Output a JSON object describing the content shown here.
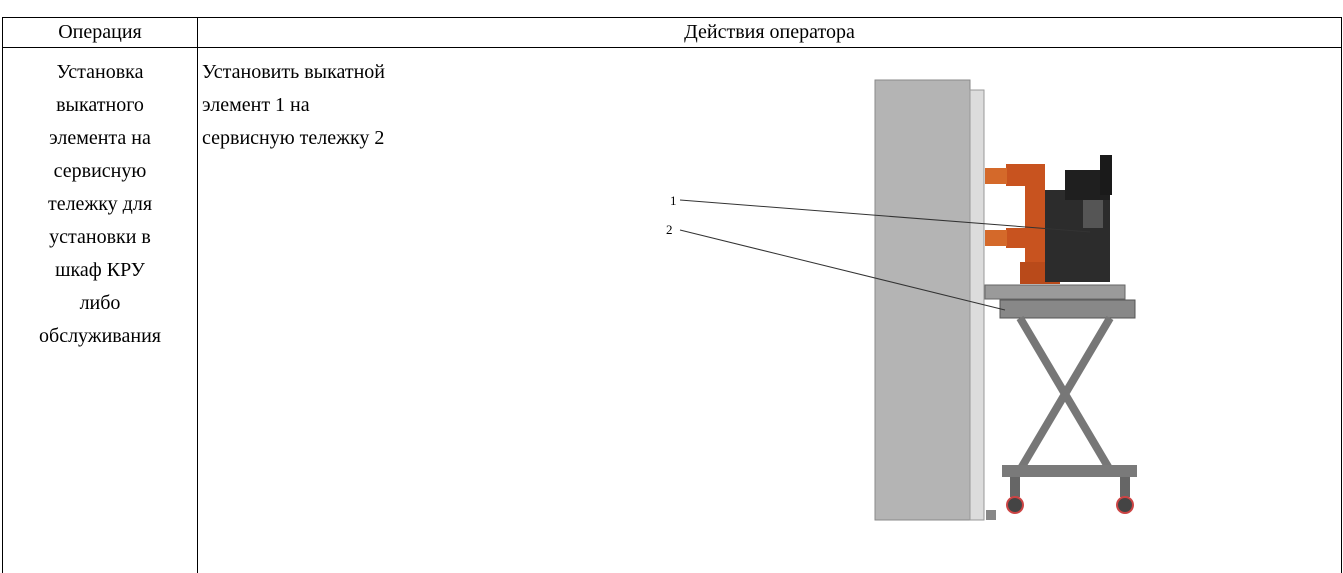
{
  "table": {
    "header": [
      "Операция",
      "Действия оператора"
    ],
    "rows": [
      [
        [
          "Установка",
          "выкатного",
          "элемента на",
          "сервисную",
          "тележку для",
          "установки в",
          "шкаф КРУ",
          "либо",
          "обслуживания"
        ],
        [
          "Установить выкатной",
          "элемент 1 на",
          "сервисную тележку 2"
        ]
      ]
    ]
  },
  "figure": {
    "callouts": [
      "1",
      "2"
    ]
  }
}
